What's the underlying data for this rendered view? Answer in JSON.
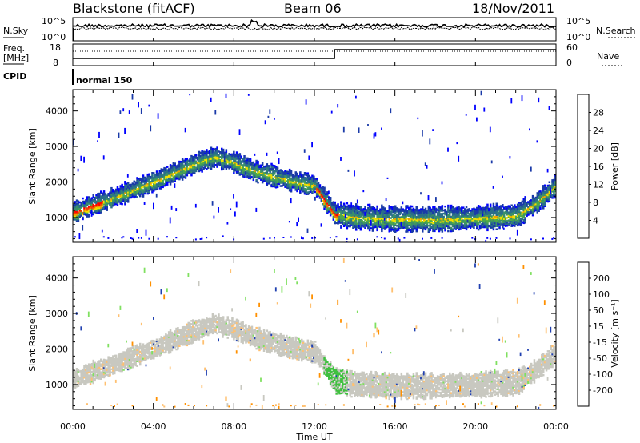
{
  "header": {
    "station": "Blackstone (fitACF)",
    "beam": "Beam 06",
    "date": "18/Nov/2011"
  },
  "noise_panel": {
    "left_label": "N.Sky",
    "right_label": "N.Search",
    "left_ticks": [
      "10^5",
      "10^0"
    ],
    "right_ticks": [
      "10^5",
      "10^0"
    ]
  },
  "freq_panel": {
    "left_label_1": "Freq.",
    "left_label_2": "[MHz]",
    "right_label": "Nave",
    "left_ticks": [
      "18",
      "8"
    ],
    "right_ticks": [
      "60",
      "0"
    ],
    "freq_step_time_hours": 13.0
  },
  "cpid": {
    "label": "CPID",
    "mode": "normal 150"
  },
  "x_axis": {
    "label": "Time UT",
    "ticks": [
      "00:00",
      "04:00",
      "08:00",
      "12:00",
      "16:00",
      "20:00",
      "00:00"
    ]
  },
  "colorbars": {
    "power": {
      "label": "Power [dB]",
      "ticks": [
        "28",
        "24",
        "20",
        "16",
        "12",
        "8",
        "4"
      ],
      "colors": [
        "#0000ff",
        "#1a3aa8",
        "#2b6e8a",
        "#3a8f6a",
        "#4da84a",
        "#f0e000",
        "#f0a000",
        "#f07000",
        "#f04000",
        "#ff0000"
      ]
    },
    "velocity": {
      "label": "Velocity [m s⁻¹]",
      "ticks": [
        "200",
        "100",
        "50",
        "15",
        "-15",
        "-50",
        "-100",
        "-200"
      ],
      "colors": [
        "#0000cc",
        "#2040b0",
        "#2a7a40",
        "#40c040",
        "#80e060",
        "#c8c8c0",
        "#ffc070",
        "#ff9000",
        "#ff5000",
        "#ff0000"
      ]
    }
  },
  "chart_data": [
    {
      "type": "heatmap",
      "name": "power",
      "xlabel": "Time UT",
      "ylabel": "Slant Range [km]",
      "xlim": [
        0,
        24
      ],
      "ylim": [
        300,
        4600
      ],
      "yticks": [
        1000,
        2000,
        3000,
        4000
      ],
      "xticks": [
        0,
        4,
        8,
        12,
        16,
        20,
        24
      ],
      "band_center_km": [
        [
          0,
          1150
        ],
        [
          1,
          1350
        ],
        [
          2,
          1550
        ],
        [
          3,
          1780
        ],
        [
          4,
          2000
        ],
        [
          5,
          2250
        ],
        [
          6,
          2500
        ],
        [
          7,
          2700
        ],
        [
          8,
          2550
        ],
        [
          9,
          2300
        ],
        [
          10,
          2150
        ],
        [
          11,
          2000
        ],
        [
          12,
          1900
        ],
        [
          12.5,
          1500
        ],
        [
          13,
          1100
        ],
        [
          14,
          1000
        ],
        [
          16,
          950
        ],
        [
          18,
          950
        ],
        [
          20,
          980
        ],
        [
          22,
          1050
        ],
        [
          23,
          1400
        ],
        [
          24,
          1900
        ]
      ]
    },
    {
      "type": "heatmap",
      "name": "velocity",
      "xlabel": "Time UT",
      "ylabel": "Slant Range [km]",
      "xlim": [
        0,
        24
      ],
      "ylim": [
        300,
        4600
      ],
      "yticks": [
        1000,
        2000,
        3000,
        4000
      ],
      "xticks": [
        0,
        4,
        8,
        12,
        16,
        20,
        24
      ]
    }
  ]
}
